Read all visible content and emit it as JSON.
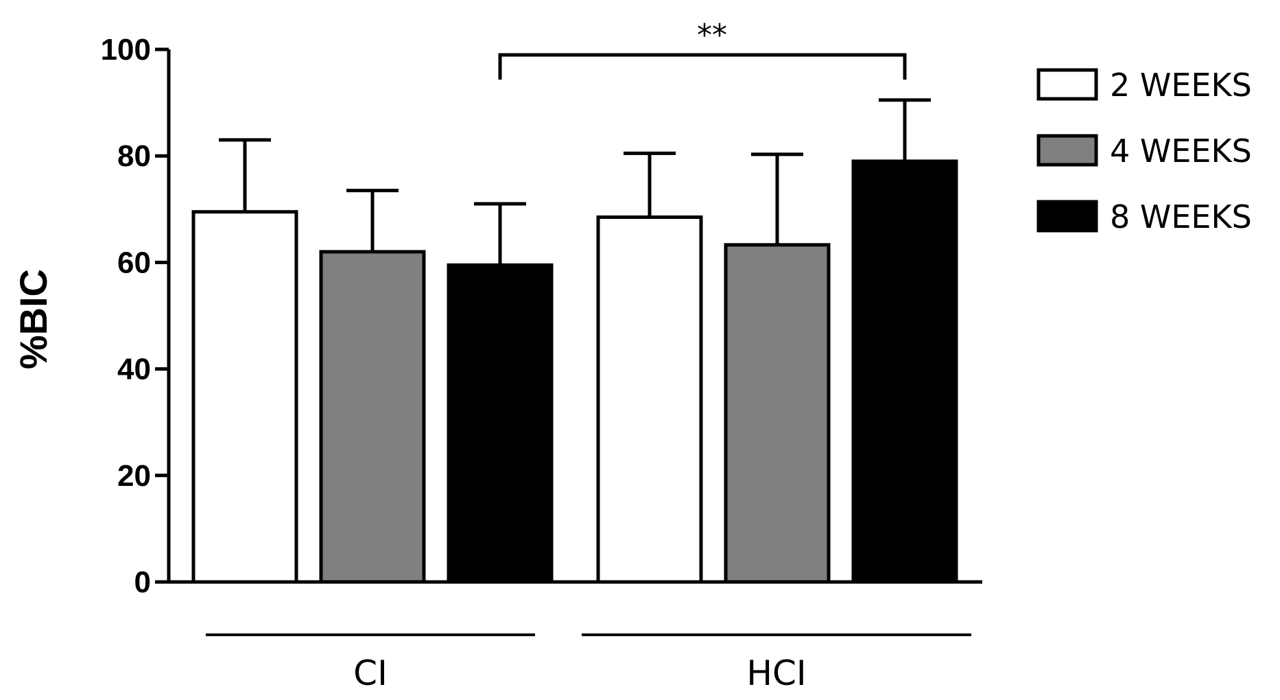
{
  "chart_data": {
    "type": "bar",
    "ylabel": "%BIC",
    "ylim": [
      0,
      100
    ],
    "yticks": [
      0,
      20,
      40,
      60,
      80,
      100
    ],
    "groups": [
      "CI",
      "HCI"
    ],
    "series": [
      {
        "name": "2 WEEKS",
        "color": "#ffffff",
        "values": [
          69.5,
          68.5
        ],
        "errors": [
          13.5,
          12.0
        ]
      },
      {
        "name": "4 WEEKS",
        "color": "#808080",
        "values": [
          62.0,
          63.3
        ],
        "errors": [
          11.5,
          17.0
        ]
      },
      {
        "name": "8 WEEKS",
        "color": "#000000",
        "values": [
          59.5,
          79.0
        ],
        "errors": [
          11.5,
          11.5
        ]
      }
    ],
    "significance": {
      "label": "**",
      "from": {
        "group": 0,
        "series": 2
      },
      "to": {
        "group": 1,
        "series": 2
      }
    },
    "legend_position": "top-right"
  }
}
